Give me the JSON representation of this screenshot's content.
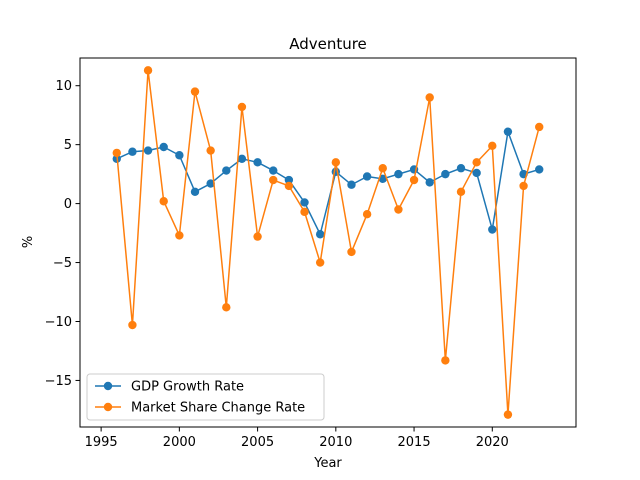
{
  "chart_data": {
    "type": "line",
    "title": "Adventure",
    "xlabel": "Year",
    "ylabel": "%",
    "xlim": [
      1993.65,
      2025.35
    ],
    "ylim": [
      -18.95,
      12.35
    ],
    "x_ticks": [
      1995,
      2000,
      2005,
      2010,
      2015,
      2020
    ],
    "y_ticks": [
      -15,
      -10,
      -5,
      0,
      5,
      10
    ],
    "y_tick_labels": [
      "−15",
      "−10",
      "−5",
      "0",
      "5",
      "10"
    ],
    "grid": false,
    "legend_position": "lower-left",
    "x": [
      1996,
      1997,
      1998,
      1999,
      2000,
      2001,
      2002,
      2003,
      2004,
      2005,
      2006,
      2007,
      2008,
      2009,
      2010,
      2011,
      2012,
      2013,
      2014,
      2015,
      2016,
      2017,
      2018,
      2019,
      2020,
      2021,
      2022,
      2023
    ],
    "series": [
      {
        "name": "GDP Growth Rate",
        "color": "#1f77b4",
        "values": [
          3.8,
          4.4,
          4.5,
          4.8,
          4.1,
          1.0,
          1.7,
          2.8,
          3.8,
          3.5,
          2.8,
          2.0,
          0.1,
          -2.6,
          2.7,
          1.6,
          2.3,
          2.1,
          2.5,
          2.9,
          1.8,
          2.5,
          3.0,
          2.6,
          -2.2,
          6.1,
          2.5,
          2.9
        ]
      },
      {
        "name": "Market Share Change Rate",
        "color": "#ff7f0e",
        "values": [
          4.3,
          -10.3,
          11.3,
          0.2,
          -2.7,
          9.5,
          4.5,
          -8.8,
          8.2,
          -2.8,
          2.0,
          1.5,
          -0.7,
          -5.0,
          3.5,
          -4.1,
          -0.9,
          3.0,
          -0.5,
          2.0,
          9.0,
          -13.3,
          1.0,
          3.5,
          4.9,
          -17.9,
          1.5,
          6.5
        ]
      }
    ]
  }
}
